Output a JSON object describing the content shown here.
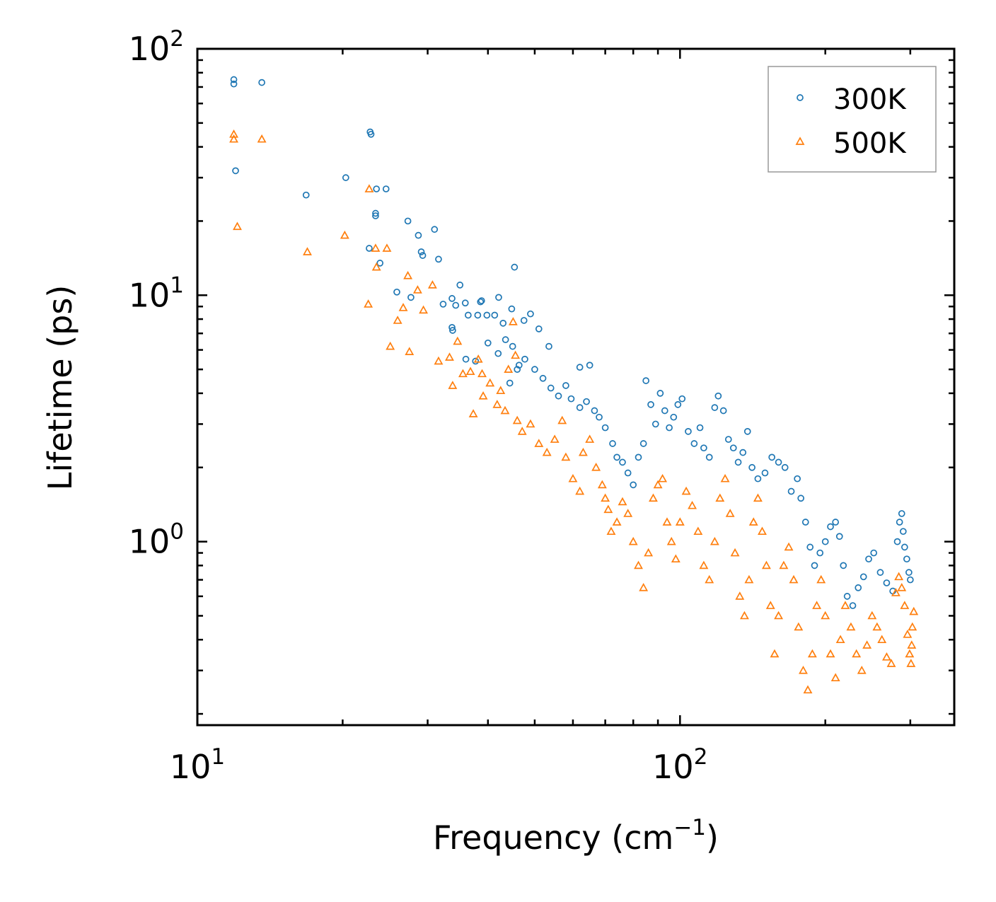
{
  "chart_data": {
    "type": "scatter",
    "x_scale": "log",
    "y_scale": "log",
    "xlim": [
      10,
      370
    ],
    "ylim": [
      0.18,
      100
    ],
    "xlabel_main": "Frequency (cm",
    "xlabel_sup": "−1",
    "xlabel_end": ")",
    "ylabel": "Lifetime (ps)",
    "x_ticks": [
      {
        "value": 10,
        "base": "10",
        "exp": "1"
      },
      {
        "value": 100,
        "base": "10",
        "exp": "2"
      }
    ],
    "y_ticks": [
      {
        "value": 1,
        "base": "10",
        "exp": "0"
      },
      {
        "value": 10,
        "base": "10",
        "exp": "1"
      },
      {
        "value": 100,
        "base": "10",
        "exp": "2"
      }
    ],
    "legend": {
      "position": "top-right"
    },
    "series": [
      {
        "name": "300K",
        "marker": "circle",
        "color": "#1f77b4",
        "points": [
          [
            11.9,
            75
          ],
          [
            11.9,
            72
          ],
          [
            12.0,
            32
          ],
          [
            13.6,
            73
          ],
          [
            16.8,
            25.5
          ],
          [
            20.3,
            30
          ],
          [
            22.8,
            46
          ],
          [
            22.9,
            45
          ],
          [
            23.5,
            27
          ],
          [
            23.4,
            21.5
          ],
          [
            23.4,
            21
          ],
          [
            24.6,
            27
          ],
          [
            22.7,
            15.5
          ],
          [
            23.9,
            13.5
          ],
          [
            25.9,
            10.3
          ],
          [
            27.3,
            20
          ],
          [
            28.7,
            17.5
          ],
          [
            29.3,
            14.5
          ],
          [
            29.1,
            15
          ],
          [
            27.7,
            9.8
          ],
          [
            31.0,
            18.5
          ],
          [
            31.6,
            14
          ],
          [
            32.3,
            9.2
          ],
          [
            33.7,
            9.7
          ],
          [
            34.3,
            9.1
          ],
          [
            33.8,
            7.2
          ],
          [
            33.7,
            7.4
          ],
          [
            35.0,
            11
          ],
          [
            36.4,
            8.3
          ],
          [
            35.9,
            9.3
          ],
          [
            38.1,
            8.3
          ],
          [
            38.6,
            9.4
          ],
          [
            38.8,
            9.5
          ],
          [
            39.8,
            8.3
          ],
          [
            36.0,
            5.5
          ],
          [
            37.7,
            5.4
          ],
          [
            41.3,
            8.3
          ],
          [
            42.1,
            9.8
          ],
          [
            40.0,
            6.4
          ],
          [
            43.0,
            7.7
          ],
          [
            44.8,
            8.8
          ],
          [
            45.4,
            13
          ],
          [
            47.5,
            7.9
          ],
          [
            49.0,
            8.4
          ],
          [
            51.0,
            7.3
          ],
          [
            43.5,
            6.6
          ],
          [
            45.0,
            6.2
          ],
          [
            46.0,
            5.0
          ],
          [
            42.0,
            5.8
          ],
          [
            44.4,
            4.4
          ],
          [
            46.4,
            5.2
          ],
          [
            47.7,
            5.5
          ],
          [
            50.0,
            5.0
          ],
          [
            52.0,
            4.6
          ],
          [
            54.0,
            4.2
          ],
          [
            53.5,
            6.2
          ],
          [
            56.0,
            3.9
          ],
          [
            58.0,
            4.3
          ],
          [
            59.5,
            3.8
          ],
          [
            62.0,
            5.1
          ],
          [
            65.0,
            5.2
          ],
          [
            62.0,
            3.5
          ],
          [
            64.0,
            3.7
          ],
          [
            68.0,
            3.2
          ],
          [
            66.5,
            3.4
          ],
          [
            70.0,
            2.9
          ],
          [
            72.5,
            2.5
          ],
          [
            74.0,
            2.2
          ],
          [
            76.0,
            2.1
          ],
          [
            78.0,
            1.9
          ],
          [
            80.0,
            1.7
          ],
          [
            82.0,
            2.2
          ],
          [
            84.0,
            2.5
          ],
          [
            85.0,
            4.5
          ],
          [
            87.0,
            3.6
          ],
          [
            89.0,
            3.0
          ],
          [
            91.0,
            4.0
          ],
          [
            93.0,
            3.4
          ],
          [
            95.0,
            2.9
          ],
          [
            97.0,
            3.2
          ],
          [
            99.0,
            3.6
          ],
          [
            101.0,
            3.8
          ],
          [
            104.0,
            2.8
          ],
          [
            107.0,
            2.5
          ],
          [
            110.0,
            2.9
          ],
          [
            112.0,
            2.4
          ],
          [
            115.0,
            2.2
          ],
          [
            118.0,
            3.5
          ],
          [
            120.0,
            3.9
          ],
          [
            123.0,
            3.4
          ],
          [
            126.0,
            2.6
          ],
          [
            129.0,
            2.4
          ],
          [
            132.0,
            2.1
          ],
          [
            135.0,
            2.3
          ],
          [
            138.0,
            2.8
          ],
          [
            141.0,
            2.0
          ],
          [
            145.0,
            1.8
          ],
          [
            150.0,
            1.9
          ],
          [
            155.0,
            2.2
          ],
          [
            160.0,
            2.1
          ],
          [
            165.0,
            2.0
          ],
          [
            170.0,
            1.6
          ],
          [
            175.0,
            1.8
          ],
          [
            178.0,
            1.5
          ],
          [
            182.0,
            1.2
          ],
          [
            186.0,
            0.95
          ],
          [
            190.0,
            0.8
          ],
          [
            195.0,
            0.9
          ],
          [
            200.0,
            1.0
          ],
          [
            205.0,
            1.15
          ],
          [
            210.0,
            1.2
          ],
          [
            214.0,
            1.05
          ],
          [
            218.0,
            0.8
          ],
          [
            222.0,
            0.6
          ],
          [
            228.0,
            0.55
          ],
          [
            234.0,
            0.65
          ],
          [
            240.0,
            0.72
          ],
          [
            246.0,
            0.85
          ],
          [
            252.0,
            0.9
          ],
          [
            260.0,
            0.75
          ],
          [
            268.0,
            0.68
          ],
          [
            276.0,
            0.63
          ],
          [
            282.0,
            1.0
          ],
          [
            285.0,
            1.2
          ],
          [
            288.0,
            1.3
          ],
          [
            290.0,
            1.1
          ],
          [
            292.0,
            0.95
          ],
          [
            295.0,
            0.85
          ],
          [
            298.0,
            0.75
          ],
          [
            300.0,
            0.7
          ]
        ]
      },
      {
        "name": "500K",
        "marker": "triangle",
        "color": "#ff7f0e",
        "points": [
          [
            11.9,
            45
          ],
          [
            11.9,
            43
          ],
          [
            12.1,
            19
          ],
          [
            13.6,
            43
          ],
          [
            16.9,
            15
          ],
          [
            20.2,
            17.5
          ],
          [
            22.7,
            27
          ],
          [
            22.6,
            9.2
          ],
          [
            23.4,
            15.5
          ],
          [
            23.5,
            13
          ],
          [
            24.7,
            15.5
          ],
          [
            25.1,
            6.2
          ],
          [
            26.0,
            7.9
          ],
          [
            26.7,
            8.9
          ],
          [
            27.3,
            12
          ],
          [
            27.5,
            5.9
          ],
          [
            28.6,
            10.5
          ],
          [
            29.4,
            8.7
          ],
          [
            30.7,
            11
          ],
          [
            31.6,
            5.4
          ],
          [
            33.3,
            5.6
          ],
          [
            33.8,
            4.3
          ],
          [
            34.6,
            6.5
          ],
          [
            35.5,
            4.8
          ],
          [
            36.8,
            4.9
          ],
          [
            37.3,
            3.3
          ],
          [
            38.2,
            5.5
          ],
          [
            38.9,
            4.8
          ],
          [
            39.1,
            3.9
          ],
          [
            40.4,
            4.4
          ],
          [
            41.8,
            3.6
          ],
          [
            42.5,
            4.1
          ],
          [
            43.4,
            3.4
          ],
          [
            44.1,
            5.0
          ],
          [
            45.1,
            7.8
          ],
          [
            45.6,
            5.7
          ],
          [
            46.0,
            3.1
          ],
          [
            47.1,
            2.8
          ],
          [
            49.0,
            3.0
          ],
          [
            51.0,
            2.5
          ],
          [
            53.0,
            2.3
          ],
          [
            55.0,
            2.6
          ],
          [
            57.0,
            3.1
          ],
          [
            58.0,
            2.2
          ],
          [
            60.0,
            1.8
          ],
          [
            62.0,
            1.6
          ],
          [
            63.0,
            2.3
          ],
          [
            65.0,
            2.6
          ],
          [
            67.0,
            2.0
          ],
          [
            69.0,
            1.7
          ],
          [
            70.0,
            1.5
          ],
          [
            71.0,
            1.35
          ],
          [
            72.0,
            1.1
          ],
          [
            74.0,
            1.2
          ],
          [
            76.0,
            1.45
          ],
          [
            78.0,
            1.3
          ],
          [
            80.0,
            1.0
          ],
          [
            82.0,
            0.8
          ],
          [
            84.0,
            0.65
          ],
          [
            86.0,
            0.9
          ],
          [
            88.0,
            1.5
          ],
          [
            90.0,
            1.7
          ],
          [
            92.0,
            1.8
          ],
          [
            94.0,
            1.2
          ],
          [
            96.0,
            1.0
          ],
          [
            98.0,
            0.85
          ],
          [
            100.0,
            1.2
          ],
          [
            103.0,
            1.6
          ],
          [
            106.0,
            1.4
          ],
          [
            109.0,
            1.1
          ],
          [
            112.0,
            0.8
          ],
          [
            115.0,
            0.7
          ],
          [
            118.0,
            1.0
          ],
          [
            121.0,
            1.5
          ],
          [
            124.0,
            1.8
          ],
          [
            127.0,
            1.3
          ],
          [
            130.0,
            0.9
          ],
          [
            133.0,
            0.6
          ],
          [
            136.0,
            0.5
          ],
          [
            139.0,
            0.7
          ],
          [
            142.0,
            1.2
          ],
          [
            145.0,
            1.5
          ],
          [
            148.0,
            1.1
          ],
          [
            151.0,
            0.8
          ],
          [
            154.0,
            0.55
          ],
          [
            157.0,
            0.35
          ],
          [
            160.0,
            0.5
          ],
          [
            164.0,
            0.8
          ],
          [
            168.0,
            0.95
          ],
          [
            172.0,
            0.7
          ],
          [
            176.0,
            0.45
          ],
          [
            180.0,
            0.3
          ],
          [
            184.0,
            0.25
          ],
          [
            188.0,
            0.35
          ],
          [
            192.0,
            0.55
          ],
          [
            196.0,
            0.7
          ],
          [
            200.0,
            0.5
          ],
          [
            205.0,
            0.35
          ],
          [
            210.0,
            0.28
          ],
          [
            215.0,
            0.4
          ],
          [
            220.0,
            0.55
          ],
          [
            226.0,
            0.45
          ],
          [
            232.0,
            0.35
          ],
          [
            238.0,
            0.3
          ],
          [
            244.0,
            0.38
          ],
          [
            250.0,
            0.5
          ],
          [
            256.0,
            0.45
          ],
          [
            262.0,
            0.4
          ],
          [
            268.0,
            0.34
          ],
          [
            274.0,
            0.32
          ],
          [
            280.0,
            0.62
          ],
          [
            284.0,
            0.72
          ],
          [
            288.0,
            0.65
          ],
          [
            292.0,
            0.55
          ],
          [
            296.0,
            0.42
          ],
          [
            299.0,
            0.35
          ],
          [
            301.0,
            0.32
          ],
          [
            303.0,
            0.45
          ],
          [
            305.0,
            0.52
          ],
          [
            302.0,
            0.38
          ]
        ]
      }
    ]
  }
}
